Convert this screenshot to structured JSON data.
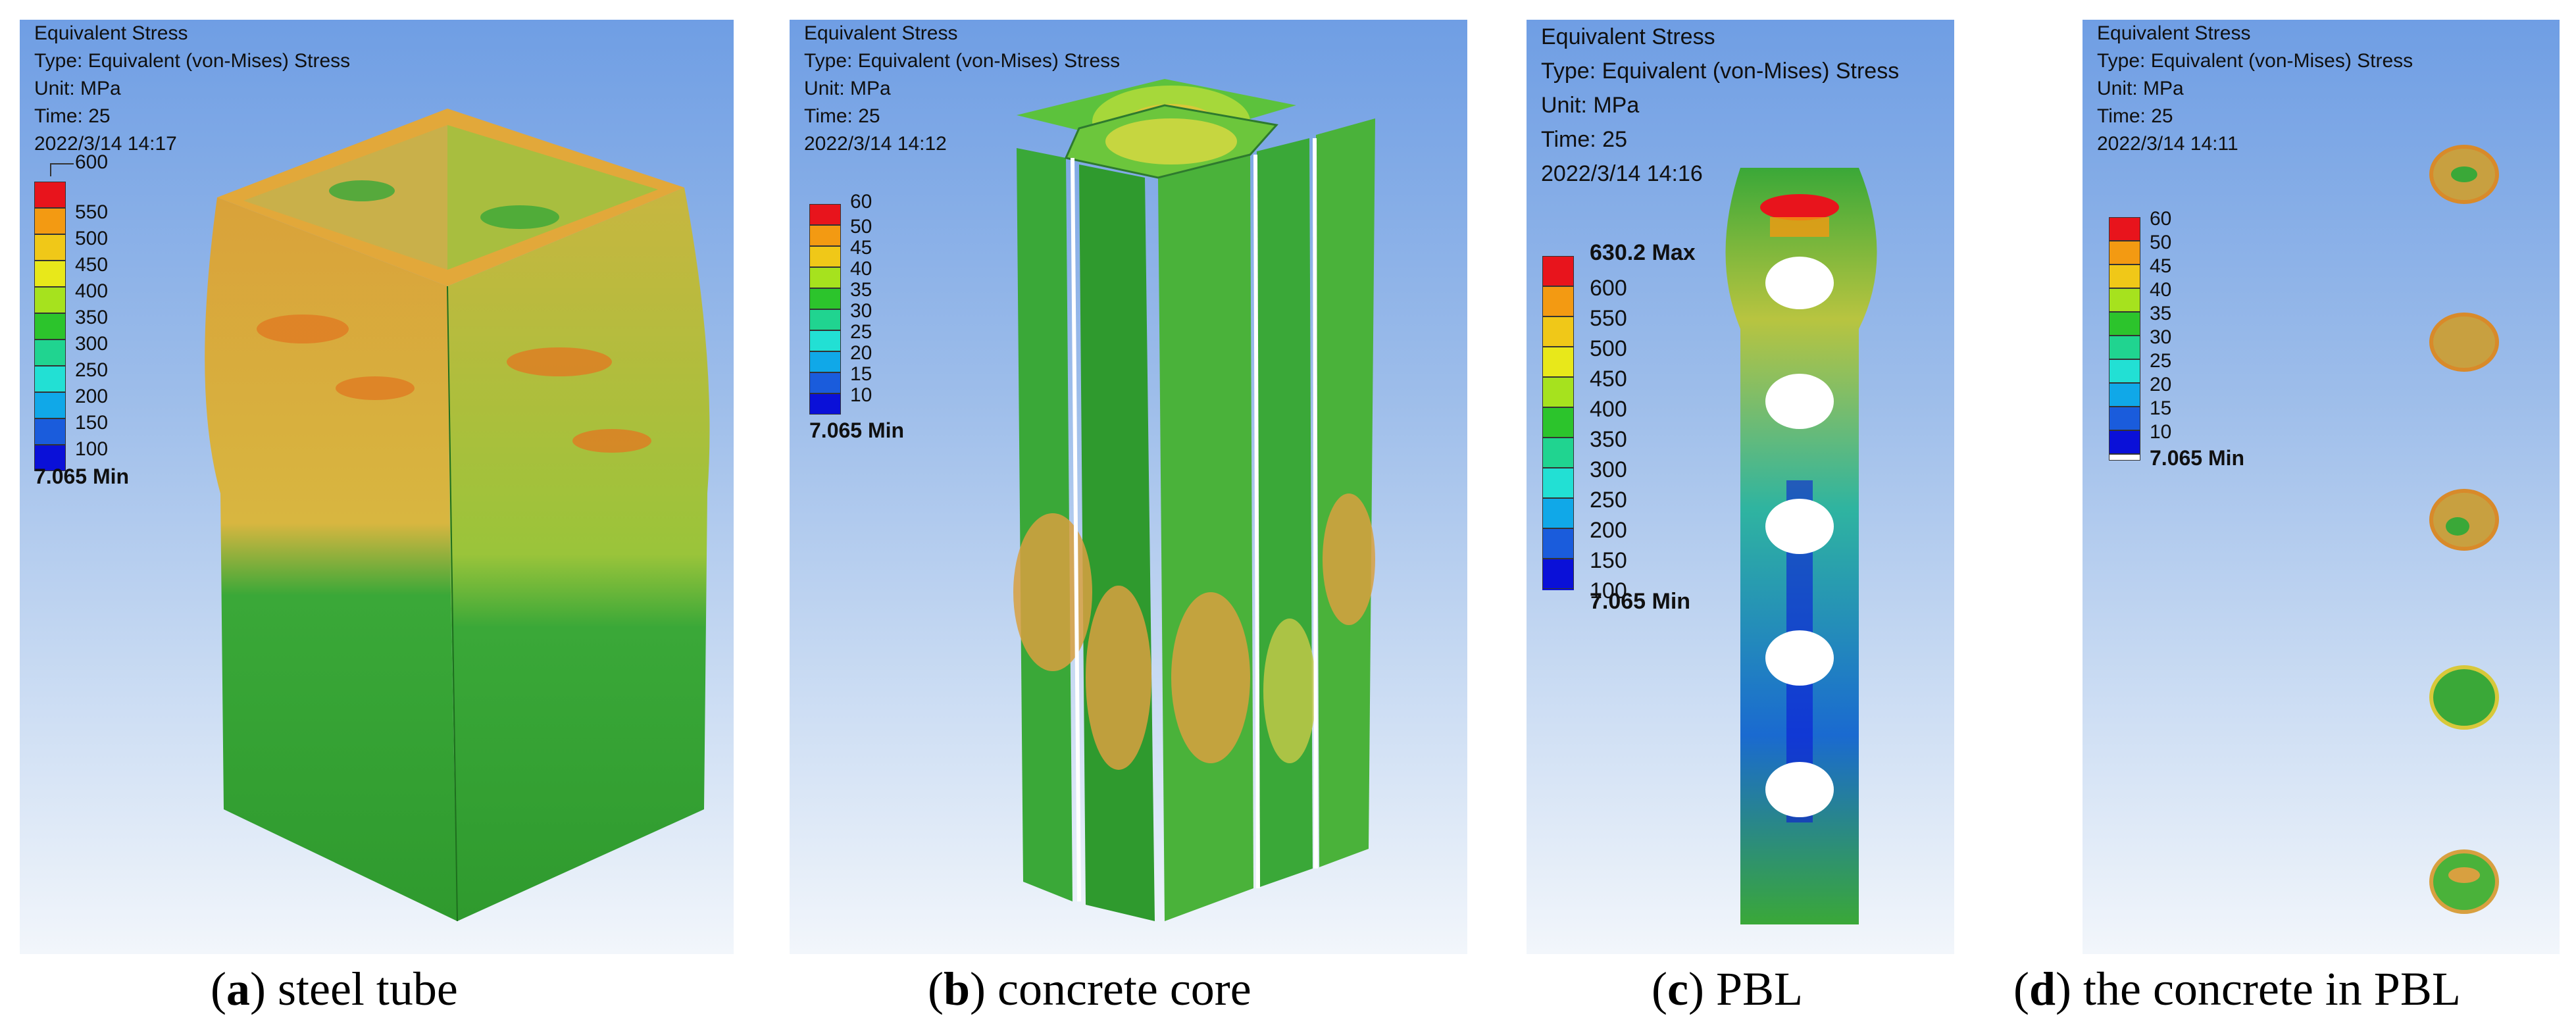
{
  "panels": [
    {
      "id": "a",
      "header": [
        "Equivalent Stress",
        "Type: Equivalent (von-Mises) Stress",
        "Unit: MPa",
        "Time: 25",
        "2022/3/14 14:17"
      ],
      "legend_max": "600",
      "legend_values": [
        "550",
        "500",
        "450",
        "400",
        "350",
        "300",
        "250",
        "200",
        "150",
        "100"
      ],
      "legend_min": "7.065 Min",
      "caption_letter": "a",
      "caption_text": "steel tube"
    },
    {
      "id": "b",
      "header": [
        "Equivalent Stress",
        "Type: Equivalent (von-Mises) Stress",
        "Unit: MPa",
        "Time: 25",
        "2022/3/14 14:12"
      ],
      "legend_max": "60",
      "legend_values": [
        "50",
        "45",
        "40",
        "35",
        "30",
        "25",
        "20",
        "15",
        "10"
      ],
      "legend_min": "7.065 Min",
      "caption_letter": "b",
      "caption_text": "concrete core"
    },
    {
      "id": "c",
      "header": [
        "Equivalent Stress",
        "Type: Equivalent (von-Mises) Stress",
        "Unit: MPa",
        "Time: 25",
        "2022/3/14 14:16"
      ],
      "legend_max": "630.2 Max",
      "legend_values": [
        "600",
        "550",
        "500",
        "450",
        "400",
        "350",
        "300",
        "250",
        "200",
        "150",
        "100"
      ],
      "legend_min": "7.065 Min",
      "caption_letter": "c",
      "caption_text": "PBL"
    },
    {
      "id": "d",
      "header": [
        "Equivalent Stress",
        "Type: Equivalent (von-Mises) Stress",
        "Unit: MPa",
        "Time: 25",
        "2022/3/14 14:11"
      ],
      "legend_max": "60",
      "legend_values": [
        "50",
        "45",
        "40",
        "35",
        "30",
        "25",
        "20",
        "15",
        "10"
      ],
      "legend_min": "7.065 Min",
      "caption_letter": "d",
      "caption_text": "the concrete in PBL"
    }
  ],
  "colors": {
    "scale": [
      "#e8141c",
      "#f39a12",
      "#f0c818",
      "#e8e81a",
      "#a6e21e",
      "#2cc42c",
      "#20d490",
      "#22e0d4",
      "#10a8e8",
      "#1a5cdc",
      "#0a10d8"
    ],
    "model_green": "#3aa838",
    "model_orange": "#e08a2a",
    "model_yellow": "#d8c83a"
  }
}
